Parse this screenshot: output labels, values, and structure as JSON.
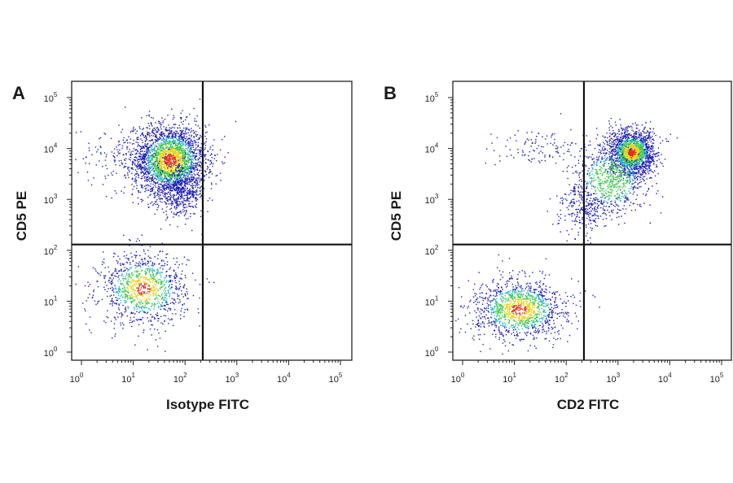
{
  "chart_data": [
    {
      "type": "scatter",
      "panel_label": "A",
      "xlabel": "Isotype FITC",
      "ylabel": "CD5 PE",
      "xscale": "log",
      "yscale": "log",
      "xlim": [
        0.7,
        140000
      ],
      "ylim": [
        0.85,
        160000
      ],
      "x_tick_labels": [
        "10^0",
        "10^1",
        "10^2",
        "10^3",
        "10^4",
        "10^5"
      ],
      "y_tick_labels": [
        "10^0",
        "10^1",
        "10^2",
        "10^3",
        "10^4",
        "10^5"
      ],
      "quadrant_gate": {
        "x": 220,
        "y": 130
      },
      "color_scale": [
        "#1f1fb4",
        "#2bb0c8",
        "#3cc94b",
        "#e8d21c",
        "#e0341a"
      ],
      "populations": [
        {
          "name_hidden": true,
          "x_center": 50,
          "y_center": 6000,
          "x_spread_log": 0.35,
          "y_spread_log": 0.35,
          "count": 2600
        },
        {
          "name_hidden": true,
          "x_center": 80,
          "y_center": 1500,
          "x_spread_log": 0.25,
          "y_spread_log": 0.25,
          "count": 500
        },
        {
          "name_hidden": true,
          "x_center": 15,
          "y_center": 18,
          "x_spread_log": 0.42,
          "y_spread_log": 0.35,
          "count": 1100
        },
        {
          "name_hidden": true,
          "x_center": 8,
          "y_center": 8000,
          "x_spread_log": 0.5,
          "y_spread_log": 0.3,
          "count": 180
        }
      ]
    },
    {
      "type": "scatter",
      "panel_label": "B",
      "xlabel": "CD2 FITC",
      "ylabel": "CD5 PE",
      "xscale": "log",
      "yscale": "log",
      "xlim": [
        0.7,
        140000
      ],
      "ylim": [
        0.85,
        160000
      ],
      "x_tick_labels": [
        "10^0",
        "10^1",
        "10^2",
        "10^3",
        "10^4",
        "10^5"
      ],
      "y_tick_labels": [
        "10^0",
        "10^1",
        "10^2",
        "10^3",
        "10^4",
        "10^5"
      ],
      "quadrant_gate": {
        "x": 220,
        "y": 130
      },
      "color_scale": [
        "#1f1fb4",
        "#2bb0c8",
        "#3cc94b",
        "#e8d21c",
        "#e0341a"
      ],
      "populations": [
        {
          "name_hidden": true,
          "x_center": 1800,
          "y_center": 8500,
          "x_spread_log": 0.22,
          "y_spread_log": 0.22,
          "count": 1800
        },
        {
          "name_hidden": true,
          "x_center": 700,
          "y_center": 2500,
          "x_spread_log": 0.35,
          "y_spread_log": 0.35,
          "count": 700
        },
        {
          "name_hidden": true,
          "x_center": 220,
          "y_center": 700,
          "x_spread_log": 0.25,
          "y_spread_log": 0.25,
          "count": 250
        },
        {
          "name_hidden": true,
          "x_center": 12,
          "y_center": 7,
          "x_spread_log": 0.45,
          "y_spread_log": 0.3,
          "count": 1300
        },
        {
          "name_hidden": true,
          "x_center": 40,
          "y_center": 10000,
          "x_spread_log": 0.5,
          "y_spread_log": 0.2,
          "count": 120
        }
      ]
    }
  ]
}
